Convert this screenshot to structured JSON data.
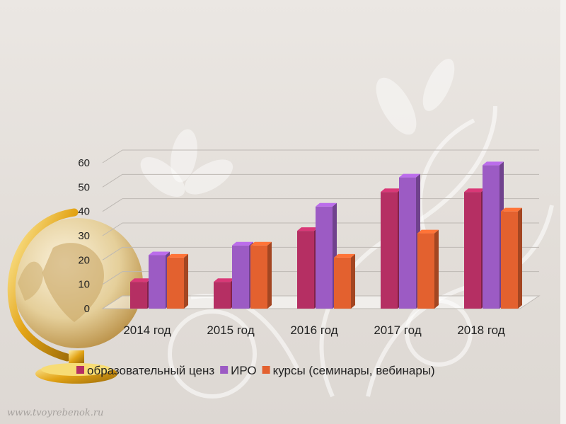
{
  "watermark": "www.tvoyrebenok.ru",
  "chart_data": {
    "type": "bar",
    "categories": [
      "2014 год",
      "2015 год",
      "2016 год",
      "2017 год",
      "2018 год"
    ],
    "series": [
      {
        "name": "образовательный ценз",
        "color": "#b52f63",
        "values": [
          11,
          11,
          32,
          48,
          48
        ]
      },
      {
        "name": "ИРО",
        "color": "#9c5bc4",
        "values": [
          22,
          26,
          42,
          54,
          59
        ]
      },
      {
        "name": "курсы (семинары, вебинары)",
        "color": "#e3612f",
        "values": [
          21,
          26,
          21,
          31,
          40
        ]
      }
    ],
    "yticks": [
      "0",
      "10",
      "20",
      "30",
      "40",
      "50",
      "60"
    ],
    "ylim": [
      0,
      60
    ],
    "grid": true,
    "legend": "bottom"
  }
}
